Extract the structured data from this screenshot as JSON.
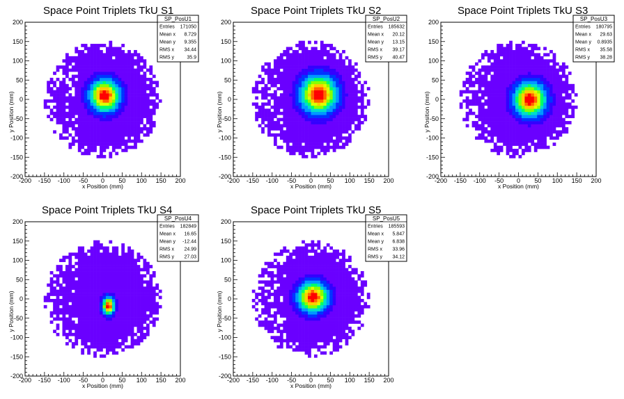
{
  "colors": {
    "palette": [
      "#6a00ff",
      "#3300ff",
      "#0033ff",
      "#0099ff",
      "#00ddcc",
      "#00ff66",
      "#88ff00",
      "#ddff00",
      "#ffcc00",
      "#ff6600",
      "#ff0000"
    ]
  },
  "chart_data": [
    {
      "type": "heatmap",
      "title": "Space Point Triplets TkU S1",
      "xlabel": "x Position (mm)",
      "ylabel": "y Position (mm)",
      "xlim": [
        -200,
        200
      ],
      "ylim": [
        -200,
        200
      ],
      "xticks": [
        "-200",
        "-150",
        "-100",
        "-50",
        "0",
        "50",
        "100",
        "150",
        "200"
      ],
      "yticks": [
        "-200",
        "-150",
        "-100",
        "-50",
        "0",
        "50",
        "100",
        "150",
        "200"
      ],
      "grid": false,
      "footprint_radius_mm": 150,
      "core": {
        "x": 5,
        "y": 10,
        "sigma_x": 30,
        "sigma_y": 32
      },
      "stats": {
        "name": "SP_PosU1",
        "rows": [
          {
            "label": "Entries",
            "value": "171050"
          },
          {
            "label": "Mean x",
            "value": "8.729"
          },
          {
            "label": "Mean y",
            "value": "9.355"
          },
          {
            "label": "RMS x",
            "value": "34.44"
          },
          {
            "label": "RMS y",
            "value": "35.9"
          }
        ]
      }
    },
    {
      "type": "heatmap",
      "title": "Space Point Triplets TkU S2",
      "xlabel": "x Position (mm)",
      "ylabel": "y Position (mm)",
      "xlim": [
        -200,
        200
      ],
      "ylim": [
        -200,
        200
      ],
      "xticks": [
        "-200",
        "-150",
        "-100",
        "-50",
        "0",
        "50",
        "100",
        "150",
        "200"
      ],
      "yticks": [
        "-200",
        "-150",
        "-100",
        "-50",
        "0",
        "50",
        "100",
        "150",
        "200"
      ],
      "grid": false,
      "footprint_radius_mm": 152,
      "core": {
        "x": 20,
        "y": 13,
        "sigma_x": 36,
        "sigma_y": 38
      },
      "stats": {
        "name": "SP_PosU2",
        "rows": [
          {
            "label": "Entries",
            "value": "185632"
          },
          {
            "label": "Mean x",
            "value": "20.12"
          },
          {
            "label": "Mean y",
            "value": "13.15"
          },
          {
            "label": "RMS x",
            "value": "39.17"
          },
          {
            "label": "RMS y",
            "value": "40.47"
          }
        ]
      }
    },
    {
      "type": "heatmap",
      "title": "Space Point Triplets TkU S3",
      "xlabel": "x Position (mm)",
      "ylabel": "y Position (mm)",
      "xlim": [
        -200,
        200
      ],
      "ylim": [
        -200,
        200
      ],
      "xticks": [
        "-200",
        "-150",
        "-100",
        "-50",
        "0",
        "50",
        "100",
        "150",
        "200"
      ],
      "yticks": [
        "-200",
        "-150",
        "-100",
        "-50",
        "0",
        "50",
        "100",
        "150",
        "200"
      ],
      "grid": false,
      "footprint_radius_mm": 150,
      "core": {
        "x": 30,
        "y": 0,
        "sigma_x": 32,
        "sigma_y": 34
      },
      "stats": {
        "name": "SP_PosU3",
        "rows": [
          {
            "label": "Entries",
            "value": "180795"
          },
          {
            "label": "Mean x",
            "value": "29.63"
          },
          {
            "label": "Mean y",
            "value": "0.8935"
          },
          {
            "label": "RMS x",
            "value": "35.58"
          },
          {
            "label": "RMS y",
            "value": "38.28"
          }
        ]
      }
    },
    {
      "type": "heatmap",
      "title": "Space Point Triplets TkU S4",
      "xlabel": "x Position (mm)",
      "ylabel": "y Position (mm)",
      "xlim": [
        -200,
        200
      ],
      "ylim": [
        -200,
        200
      ],
      "xticks": [
        "-200",
        "-150",
        "-100",
        "-50",
        "0",
        "50",
        "100",
        "150",
        "200"
      ],
      "yticks": [
        "-200",
        "-150",
        "-100",
        "-50",
        "0",
        "50",
        "100",
        "150",
        "200"
      ],
      "grid": false,
      "footprint_radius_mm": 150,
      "core": {
        "x": 15,
        "y": -18,
        "sigma_x": 12,
        "sigma_y": 18
      },
      "stats": {
        "name": "SP_PosU4",
        "rows": [
          {
            "label": "Entries",
            "value": "182849"
          },
          {
            "label": "Mean x",
            "value": "16.65"
          },
          {
            "label": "Mean y",
            "value": "-12.44"
          },
          {
            "label": "RMS x",
            "value": "24.99"
          },
          {
            "label": "RMS y",
            "value": "27.03"
          }
        ]
      }
    },
    {
      "type": "heatmap",
      "title": "Space Point Triplets TkU S5",
      "xlabel": "x Position (mm)",
      "ylabel": "y Position (mm)",
      "xlim": [
        -200,
        200
      ],
      "ylim": [
        -200,
        200
      ],
      "xticks": [
        "-200",
        "-150",
        "-100",
        "-50",
        "0",
        "50",
        "100",
        "150",
        "200"
      ],
      "yticks": [
        "-200",
        "-150",
        "-100",
        "-50",
        "0",
        "50",
        "100",
        "150",
        "200"
      ],
      "grid": false,
      "footprint_radius_mm": 150,
      "core": {
        "x": 5,
        "y": 5,
        "sigma_x": 30,
        "sigma_y": 30
      },
      "stats": {
        "name": "SP_PosU5",
        "rows": [
          {
            "label": "Entries",
            "value": "185593"
          },
          {
            "label": "Mean x",
            "value": "5.847"
          },
          {
            "label": "Mean y",
            "value": "6.838"
          },
          {
            "label": "RMS x",
            "value": "33.96"
          },
          {
            "label": "RMS y",
            "value": "34.12"
          }
        ]
      }
    }
  ]
}
